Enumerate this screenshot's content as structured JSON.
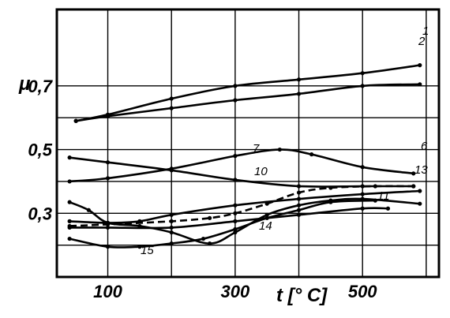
{
  "chart_data": {
    "type": "line",
    "title": "",
    "xlabel": "t [° C]",
    "ylabel": "μ",
    "xlim": [
      20,
      620
    ],
    "ylim": [
      0.1,
      0.94
    ],
    "x_ticks": [
      100,
      300,
      500
    ],
    "x_tick_labels": [
      "100",
      "300",
      "500"
    ],
    "y_ticks": [
      0.3,
      0.5,
      0.7
    ],
    "y_tick_labels": [
      "0,3",
      "0,5",
      "0,7"
    ],
    "grid": true,
    "series": [
      {
        "name": "1",
        "style": "solid",
        "x": [
          50,
          100,
          200,
          300,
          400,
          500,
          590
        ],
        "y": [
          0.59,
          0.61,
          0.66,
          0.7,
          0.72,
          0.74,
          0.765
        ]
      },
      {
        "name": "2",
        "style": "solid",
        "x": [
          50,
          100,
          200,
          300,
          400,
          500,
          590
        ],
        "y": [
          0.59,
          0.605,
          0.63,
          0.655,
          0.675,
          0.7,
          0.705
        ]
      },
      {
        "name": "6",
        "style": "solid",
        "x": [
          40,
          100,
          200,
          300,
          370,
          420,
          500,
          580
        ],
        "y": [
          0.4,
          0.41,
          0.44,
          0.48,
          0.5,
          0.485,
          0.445,
          0.425
        ]
      },
      {
        "name": "7",
        "style": "solid",
        "x": [
          40,
          100,
          200,
          300,
          400,
          500,
          580
        ],
        "y": [
          0.475,
          0.46,
          0.435,
          0.405,
          0.385,
          0.385,
          0.385
        ]
      },
      {
        "name": "10",
        "style": "dashed",
        "x": [
          40,
          100,
          200,
          260,
          300,
          350,
          400,
          450,
          520,
          580
        ],
        "y": [
          0.26,
          0.265,
          0.275,
          0.285,
          0.3,
          0.33,
          0.365,
          0.38,
          0.385,
          0.385
        ]
      },
      {
        "name": "11",
        "style": "solid",
        "x": [
          40,
          100,
          200,
          300,
          400,
          500,
          540
        ],
        "y": [
          0.255,
          0.255,
          0.255,
          0.275,
          0.295,
          0.315,
          0.315
        ]
      },
      {
        "name": "13",
        "style": "solid",
        "x": [
          40,
          100,
          150,
          200,
          300,
          400,
          500,
          590
        ],
        "y": [
          0.275,
          0.27,
          0.275,
          0.295,
          0.325,
          0.345,
          0.36,
          0.37
        ]
      },
      {
        "name": "14",
        "style": "solid",
        "x": [
          40,
          70,
          100,
          150,
          200,
          260,
          300,
          350,
          400,
          450,
          500,
          590
        ],
        "y": [
          0.335,
          0.31,
          0.27,
          0.26,
          0.24,
          0.205,
          0.24,
          0.295,
          0.325,
          0.34,
          0.345,
          0.33
        ]
      },
      {
        "name": "15",
        "style": "solid",
        "x": [
          40,
          100,
          150,
          200,
          250,
          300,
          350,
          400,
          450,
          520
        ],
        "y": [
          0.22,
          0.195,
          0.195,
          0.205,
          0.22,
          0.25,
          0.285,
          0.31,
          0.335,
          0.34
        ]
      }
    ],
    "annotations": [
      "1",
      "2",
      "6",
      "7",
      "10",
      "11",
      "13",
      "14",
      "15"
    ]
  }
}
